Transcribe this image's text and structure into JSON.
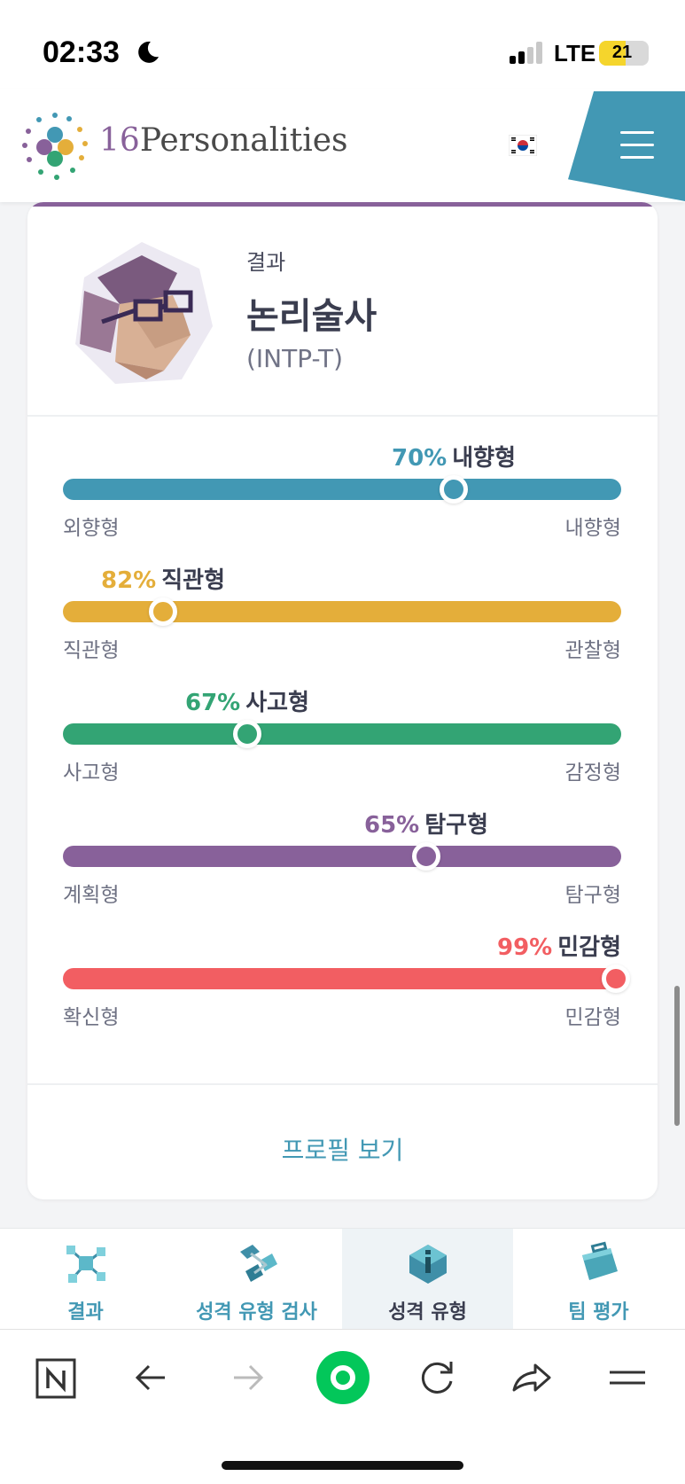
{
  "status": {
    "time": "02:33",
    "network": "LTE",
    "battery": "21"
  },
  "header": {
    "logo_number": "16",
    "logo_word": "Personalities",
    "flag": "korea-flag-icon",
    "menu_icon": "hamburger-menu-icon"
  },
  "result": {
    "label": "결과",
    "type_name": "논리술사",
    "type_code": "(INTP-T)"
  },
  "traits": [
    {
      "percent": "70%",
      "value": 70,
      "dominant": "내향형",
      "left_label": "외향형",
      "right_label": "내향형",
      "color": "#4298b4",
      "position": 0.7
    },
    {
      "percent": "82%",
      "value": 82,
      "dominant": "직관형",
      "left_label": "직관형",
      "right_label": "관찰형",
      "color": "#e4ae3a",
      "position": 0.18
    },
    {
      "percent": "67%",
      "value": 67,
      "dominant": "사고형",
      "left_label": "사고형",
      "right_label": "감정형",
      "color": "#33a474",
      "position": 0.33
    },
    {
      "percent": "65%",
      "value": 65,
      "dominant": "탐구형",
      "left_label": "계획형",
      "right_label": "탐구형",
      "color": "#88619a",
      "position": 0.65
    },
    {
      "percent": "99%",
      "value": 99,
      "dominant": "민감형",
      "left_label": "확신형",
      "right_label": "민감형",
      "color": "#f25e62",
      "position": 0.99
    }
  ],
  "profile_link": "프로필 보기",
  "bottom_nav": [
    {
      "label": "결과",
      "icon": "results-molecule-icon",
      "active": false
    },
    {
      "label": "성격 유형 검사",
      "icon": "test-cube-icon",
      "active": false
    },
    {
      "label": "성격 유형",
      "icon": "types-info-icon",
      "active": true
    },
    {
      "label": "팀 평가",
      "icon": "team-briefcase-icon",
      "active": false
    }
  ],
  "browser_toolbar": [
    "naver-n-icon",
    "back-arrow-icon",
    "forward-arrow-icon",
    "home-green-icon",
    "reload-icon",
    "share-icon",
    "menu-lines-icon"
  ]
}
